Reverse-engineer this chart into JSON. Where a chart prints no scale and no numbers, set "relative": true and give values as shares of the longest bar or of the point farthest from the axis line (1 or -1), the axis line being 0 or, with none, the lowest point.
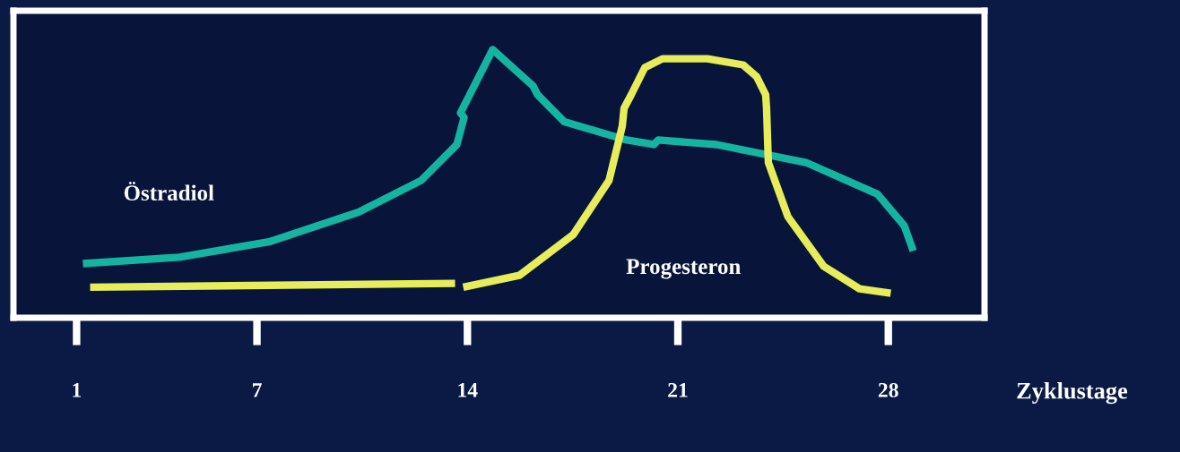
{
  "chart_data": {
    "type": "line",
    "relative": true,
    "xlabel": "Zyklustage",
    "xlim": [
      -1.1,
      31.2
    ],
    "xticks": [
      1,
      7,
      14,
      21,
      28
    ],
    "grid": false,
    "legend": false,
    "marker": "none",
    "line_style": "solid",
    "series": [
      {
        "name": "Östradiol",
        "color": "#14b4a0",
        "x": [
          1.21,
          4.42,
          7.4,
          10.38,
          12.46,
          13.65,
          13.89,
          13.77,
          14.84,
          16.18,
          16.33,
          17.22,
          19.3,
          20.2,
          20.35,
          22.28,
          25.26,
          27.64,
          28.53,
          28.83
        ],
        "values": [
          0.202,
          0.226,
          0.283,
          0.394,
          0.512,
          0.646,
          0.747,
          0.764,
          1.0,
          0.865,
          0.832,
          0.731,
          0.663,
          0.646,
          0.663,
          0.646,
          0.579,
          0.461,
          0.343,
          0.249
        ]
      },
      {
        "name": "Progesteron",
        "color": "#e6ec5a",
        "x": [
          1.45,
          13.59,
          13.7,
          13.86,
          15.73,
          17.52,
          18.71,
          19.15,
          19.21,
          19.45,
          19.9,
          20.49,
          21.98,
          23.17,
          23.62,
          23.92,
          23.95,
          24.01,
          24.66,
          25.85,
          27.04,
          28.08
        ],
        "values": [
          0.114,
          0.128,
          null,
          0.114,
          0.158,
          0.31,
          0.512,
          0.714,
          0.781,
          0.832,
          0.933,
          0.966,
          0.966,
          0.943,
          0.899,
          0.832,
          0.781,
          0.579,
          0.377,
          0.192,
          0.108,
          0.091
        ]
      }
    ]
  }
}
